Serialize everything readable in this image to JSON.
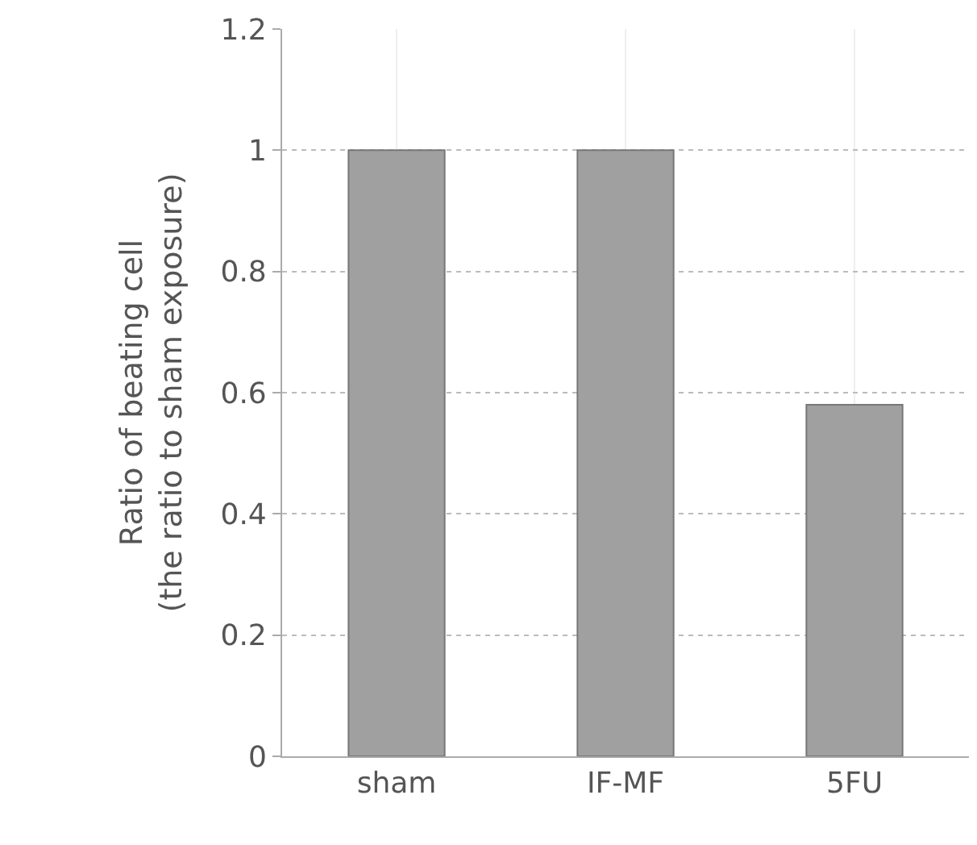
{
  "chart_data": {
    "type": "bar",
    "ylabel": "Ratio of beating cell\n(the ratio to sham exposure)",
    "categories": [
      "sham",
      "IF-MF",
      "5FU"
    ],
    "values": [
      1,
      1,
      0.58
    ],
    "color": "#a0a0a0",
    "ylim": [
      0,
      1.2
    ],
    "yticks": [
      0,
      0.2,
      0.4,
      0.6,
      0.8,
      1,
      1.2
    ],
    "grid": true,
    "legend": false
  }
}
